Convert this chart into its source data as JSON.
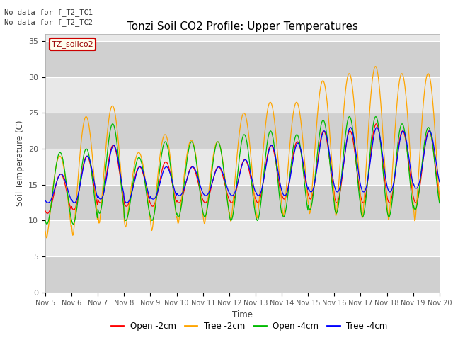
{
  "title": "Tonzi Soil CO2 Profile: Upper Temperatures",
  "ylabel": "Soil Temperature (C)",
  "xlabel": "Time",
  "annotations": [
    "No data for f_T2_TC1",
    "No data for f_T2_TC2"
  ],
  "legend_label": "TZ_soilco2",
  "series_labels": [
    "Open -2cm",
    "Tree -2cm",
    "Open -4cm",
    "Tree -4cm"
  ],
  "series_colors": [
    "#ff0000",
    "#ffa500",
    "#00bb00",
    "#0000ff"
  ],
  "ylim": [
    0,
    36
  ],
  "yticks": [
    0,
    5,
    10,
    15,
    20,
    25,
    30,
    35
  ],
  "plot_bg": "#e8e8e8",
  "fig_bg": "#ffffff",
  "band_color": "#d0d0d0",
  "pts_per_day": 48,
  "n_days": 15,
  "tree2_max": [
    19.0,
    24.5,
    26.0,
    19.5,
    22.0,
    21.2,
    21.0,
    25.0,
    26.5,
    26.5,
    29.5,
    30.5,
    31.5,
    30.5,
    30.5
  ],
  "tree2_min": [
    7.5,
    7.8,
    9.5,
    9.0,
    8.5,
    9.5,
    9.5,
    9.8,
    10.2,
    10.5,
    10.8,
    10.5,
    10.2,
    10.0,
    9.8
  ],
  "open2_max": [
    16.5,
    19.0,
    20.5,
    17.5,
    18.2,
    17.5,
    17.5,
    18.5,
    20.5,
    21.0,
    22.5,
    22.5,
    23.5,
    22.5,
    22.5
  ],
  "open2_min": [
    11.0,
    11.5,
    12.5,
    12.0,
    12.0,
    12.5,
    12.5,
    12.5,
    12.5,
    13.0,
    13.0,
    12.5,
    12.5,
    12.5,
    12.5
  ],
  "open4_max": [
    19.5,
    20.0,
    23.5,
    18.8,
    21.0,
    21.0,
    21.0,
    22.0,
    22.5,
    22.0,
    24.0,
    24.5,
    24.5,
    23.5,
    23.0
  ],
  "open4_min": [
    9.5,
    9.5,
    11.0,
    10.0,
    10.0,
    10.5,
    10.5,
    10.0,
    10.0,
    10.5,
    11.5,
    11.0,
    10.5,
    10.5,
    11.5
  ],
  "blue4_max": [
    16.5,
    19.0,
    20.5,
    17.5,
    17.5,
    17.5,
    17.5,
    18.5,
    20.5,
    20.8,
    22.5,
    23.0,
    23.0,
    22.5,
    22.5
  ],
  "blue4_min": [
    12.5,
    12.5,
    13.0,
    12.5,
    13.0,
    13.5,
    13.5,
    13.5,
    13.5,
    13.5,
    14.0,
    14.0,
    14.0,
    14.0,
    14.5
  ]
}
